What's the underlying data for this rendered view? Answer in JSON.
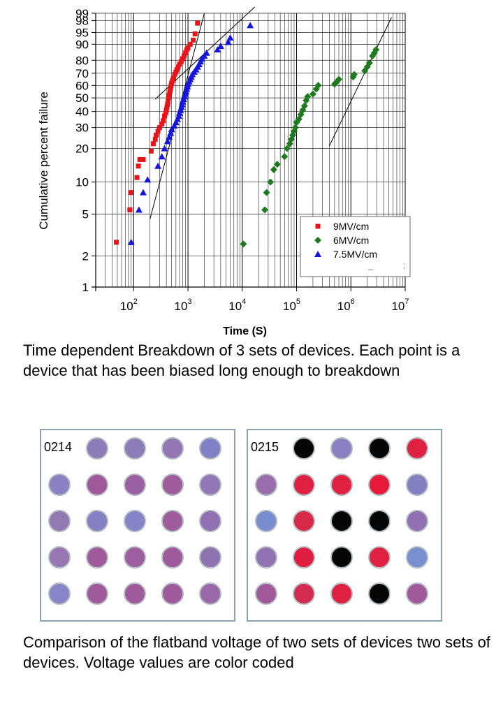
{
  "chart_data": {
    "type": "scatter",
    "title": "",
    "xlabel": "Time (S)",
    "ylabel": "Cumulative percent failure",
    "x_scale": "log",
    "y_scale": "weibull-probability",
    "xlim": [
      20,
      10000000
    ],
    "ylim": [
      1,
      99
    ],
    "grid": true,
    "legend_position": "bottom-right",
    "x_tick_labels": [
      {
        "base": "10",
        "exp": "2",
        "value": 100
      },
      {
        "base": "10",
        "exp": "3",
        "value": 1000
      },
      {
        "base": "10",
        "exp": "4",
        "value": 10000
      },
      {
        "base": "10",
        "exp": "5",
        "value": 100000
      },
      {
        "base": "10",
        "exp": "6",
        "value": 1000000
      },
      {
        "base": "10",
        "exp": "7",
        "value": 10000000
      }
    ],
    "y_tick_values": [
      1,
      2,
      5,
      10,
      20,
      30,
      40,
      50,
      60,
      70,
      80,
      90,
      95,
      98,
      99
    ],
    "y_tick_labels": [
      "1",
      "2",
      "5",
      "10",
      "20",
      "30",
      "40",
      "50",
      "60",
      "70",
      "80",
      "90",
      "95",
      "98",
      "99"
    ],
    "series": [
      {
        "name": "9MV/cm",
        "marker": "square",
        "color": "#e8141a",
        "points": [
          [
            48,
            2.7
          ],
          [
            85,
            5.5
          ],
          [
            88,
            8
          ],
          [
            115,
            11
          ],
          [
            122,
            14
          ],
          [
            130,
            16
          ],
          [
            150,
            16
          ],
          [
            210,
            19
          ],
          [
            230,
            22
          ],
          [
            250,
            24
          ],
          [
            260,
            26
          ],
          [
            280,
            28
          ],
          [
            300,
            30
          ],
          [
            330,
            32
          ],
          [
            350,
            34
          ],
          [
            370,
            37
          ],
          [
            390,
            39
          ],
          [
            400,
            41
          ],
          [
            410,
            43
          ],
          [
            420,
            45
          ],
          [
            430,
            47
          ],
          [
            440,
            50
          ],
          [
            450,
            52
          ],
          [
            460,
            54
          ],
          [
            470,
            56
          ],
          [
            480,
            58
          ],
          [
            490,
            60
          ],
          [
            500,
            62
          ],
          [
            520,
            64
          ],
          [
            540,
            66
          ],
          [
            570,
            69
          ],
          [
            600,
            71
          ],
          [
            630,
            73
          ],
          [
            660,
            75
          ],
          [
            700,
            77
          ],
          [
            750,
            79
          ],
          [
            800,
            81
          ],
          [
            850,
            83
          ],
          [
            900,
            85
          ],
          [
            950,
            87
          ],
          [
            1000,
            88
          ],
          [
            1100,
            90
          ],
          [
            1250,
            92
          ],
          [
            1350,
            94.5
          ],
          [
            1500,
            97.5
          ]
        ],
        "fit_line": [
          [
            200,
            4.5
          ],
          [
            2000,
            99
          ]
        ]
      },
      {
        "name": "6MV/cm",
        "marker": "diamond",
        "color": "#1e7a1e",
        "points": [
          [
            10500,
            2.6
          ],
          [
            26000,
            5.5
          ],
          [
            28000,
            8
          ],
          [
            33000,
            10
          ],
          [
            38000,
            13
          ],
          [
            44000,
            14.5
          ],
          [
            60000,
            17
          ],
          [
            67000,
            20
          ],
          [
            75000,
            22
          ],
          [
            80000,
            24
          ],
          [
            85000,
            26
          ],
          [
            90000,
            28
          ],
          [
            95000,
            30
          ],
          [
            100000,
            33
          ],
          [
            110000,
            35
          ],
          [
            120000,
            38
          ],
          [
            130000,
            41
          ],
          [
            140000,
            44
          ],
          [
            150000,
            48
          ],
          [
            160000,
            51
          ],
          [
            200000,
            53
          ],
          [
            230000,
            57
          ],
          [
            250000,
            60
          ],
          [
            500000,
            61
          ],
          [
            550000,
            63
          ],
          [
            600000,
            65
          ],
          [
            1100000,
            67
          ],
          [
            1150000,
            69
          ],
          [
            1800000,
            72
          ],
          [
            2000000,
            75
          ],
          [
            2200000,
            78
          ],
          [
            2500000,
            83
          ],
          [
            2700000,
            85
          ],
          [
            2900000,
            87
          ]
        ],
        "fit_line": [
          [
            400000,
            21
          ],
          [
            5600000,
            98.5
          ]
        ]
      },
      {
        "name": "7.5MV/cm",
        "marker": "triangle",
        "color": "#1515e0",
        "points": [
          [
            90,
            2.7
          ],
          [
            125,
            5.5
          ],
          [
            150,
            8
          ],
          [
            180,
            10.5
          ],
          [
            280,
            14
          ],
          [
            330,
            17
          ],
          [
            370,
            20
          ],
          [
            420,
            23
          ],
          [
            450,
            25
          ],
          [
            480,
            27
          ],
          [
            500,
            29
          ],
          [
            560,
            31
          ],
          [
            600,
            33
          ],
          [
            640,
            35
          ],
          [
            680,
            37
          ],
          [
            700,
            39
          ],
          [
            730,
            41
          ],
          [
            760,
            43
          ],
          [
            780,
            45
          ],
          [
            800,
            47
          ],
          [
            830,
            49
          ],
          [
            860,
            51
          ],
          [
            890,
            53
          ],
          [
            920,
            55
          ],
          [
            950,
            57
          ],
          [
            980,
            59
          ],
          [
            1000,
            61
          ],
          [
            1050,
            63
          ],
          [
            1100,
            65
          ],
          [
            1150,
            67
          ],
          [
            1200,
            69
          ],
          [
            1300,
            71
          ],
          [
            1400,
            73
          ],
          [
            1500,
            75
          ],
          [
            1600,
            77
          ],
          [
            1700,
            79
          ],
          [
            1800,
            81
          ],
          [
            2000,
            83
          ],
          [
            2200,
            85
          ],
          [
            3500,
            87
          ],
          [
            4000,
            89
          ],
          [
            5500,
            91
          ],
          [
            6000,
            93
          ],
          [
            14000,
            97
          ]
        ],
        "fit_line": [
          [
            250,
            49
          ],
          [
            17000,
            99.5
          ]
        ]
      }
    ]
  },
  "captions": {
    "chart": "Time dependent Breakdown of 3 sets of devices. Each point is a device that has been biased long enough to breakdown",
    "wafers": "Comparison of the flatband voltage of two sets of devices two sets of devices. Voltage values are color coded"
  },
  "legend_artifacts": [
    "_",
    ";"
  ],
  "wafer_maps": [
    {
      "label": "0214",
      "rows": [
        [
          null,
          "#8c7cb8",
          "#8c7cb8",
          "#9277b4",
          "#8080c4"
        ],
        [
          "#8a80c2",
          "#a0589a",
          "#9a60a2",
          "#9e5c9c",
          "#9177b5"
        ],
        [
          "#9379b4",
          "#8580c4",
          "#8684c8",
          "#9f5c9c",
          "#9070b0"
        ],
        [
          "#9677b4",
          "#a05a9c",
          "#9d5ea0",
          "#a05a9c",
          "#8e73b1"
        ],
        [
          "#8685c7",
          "#a05a9c",
          "#a05a9c",
          "#9f5a9c",
          "#9a68a8"
        ]
      ]
    },
    {
      "label": "0215",
      "rows": [
        [
          null,
          "#050505",
          "#8a80c2",
          "#050505",
          "#e02040"
        ],
        [
          "#9a6cac",
          "#e02040",
          "#e02040",
          "#e81838",
          "#8380c0"
        ],
        [
          "#7a8cd0",
          "#d82848",
          "#050505",
          "#050505",
          "#9070b0"
        ],
        [
          "#9073b2",
          "#e01c40",
          "#050505",
          "#e02040",
          "#7a8fd0"
        ],
        [
          "#a0589a",
          "#d42c50",
          "#e02040",
          "#050505",
          "#a0589a"
        ]
      ]
    }
  ]
}
